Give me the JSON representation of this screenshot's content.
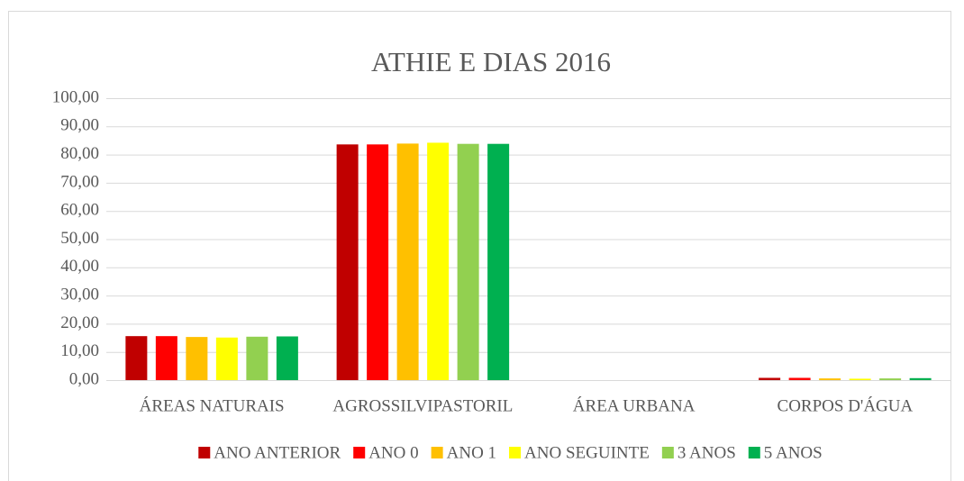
{
  "chart_data": {
    "type": "bar",
    "title": "ATHIE E DIAS 2016",
    "categories": [
      "ÁREAS NATURAIS",
      "AGROSSILVIPASTORIL",
      "ÁREA URBANA",
      "CORPOS D'ÁGUA"
    ],
    "series": [
      {
        "name": "ANO ANTERIOR",
        "color": "#c00000",
        "values": [
          15.6,
          83.6,
          0.0,
          0.8
        ]
      },
      {
        "name": "ANO 0",
        "color": "#ff0000",
        "values": [
          15.6,
          83.6,
          0.0,
          0.8
        ]
      },
      {
        "name": "ANO 1",
        "color": "#ffc000",
        "values": [
          15.3,
          83.9,
          0.0,
          0.6
        ]
      },
      {
        "name": "ANO SEGUINTE",
        "color": "#ffff00",
        "values": [
          15.1,
          84.2,
          0.0,
          0.5
        ]
      },
      {
        "name": "3 ANOS",
        "color": "#92d050",
        "values": [
          15.4,
          83.8,
          0.0,
          0.6
        ]
      },
      {
        "name": "5 ANOS",
        "color": "#00b050",
        "values": [
          15.5,
          83.8,
          0.0,
          0.7
        ]
      }
    ],
    "ylim": [
      0,
      100
    ],
    "yticks": [
      {
        "value": 0,
        "label": "0,00"
      },
      {
        "value": 10,
        "label": "10,00"
      },
      {
        "value": 20,
        "label": "20,00"
      },
      {
        "value": 30,
        "label": "30,00"
      },
      {
        "value": 40,
        "label": "40,00"
      },
      {
        "value": 50,
        "label": "50,00"
      },
      {
        "value": 60,
        "label": "60,00"
      },
      {
        "value": 70,
        "label": "70,00"
      },
      {
        "value": 80,
        "label": "80,00"
      },
      {
        "value": 90,
        "label": "90,00"
      },
      {
        "value": 100,
        "label": "100,00"
      }
    ],
    "grid": true,
    "legend": "bottom"
  }
}
